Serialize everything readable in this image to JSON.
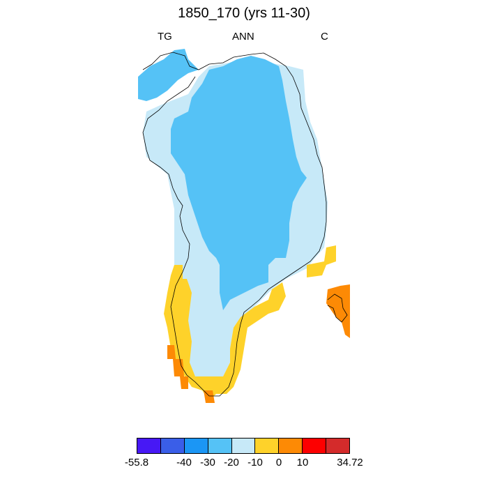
{
  "title": "1850_170 (yrs 11-30)",
  "left_label": "TG",
  "center_label": "ANN",
  "right_label": "C",
  "colorbar": {
    "colors": [
      "#4718f5",
      "#3a5ee8",
      "#1b96f5",
      "#55c2f6",
      "#c7e9f8",
      "#fed22a",
      "#fd8a05",
      "#fd0000",
      "#d42b2b"
    ],
    "tick_labels": [
      "-55.8",
      "-40",
      "-30",
      "-20",
      "-10",
      "0",
      "10",
      "34.72"
    ]
  },
  "map_colors": {
    "dark_blue": "#55c2f6",
    "light_blue": "#c7e9f8",
    "yellow": "#fed22a",
    "orange": "#fd8a05",
    "coastline": "#000000"
  }
}
